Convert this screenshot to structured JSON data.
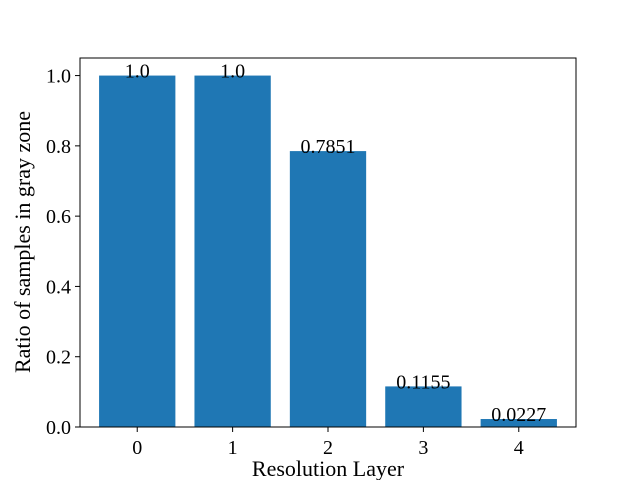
{
  "chart_data": {
    "type": "bar",
    "categories": [
      "0",
      "1",
      "2",
      "3",
      "4"
    ],
    "values": [
      1.0,
      1.0,
      0.7851,
      0.1155,
      0.0227
    ],
    "data_labels": [
      "1.0",
      "1.0",
      "0.7851",
      "0.1155",
      "0.0227"
    ],
    "xlabel": "Resolution Layer",
    "ylabel": "Ratio of samples in gray zone",
    "ylim": [
      0,
      1.05
    ],
    "yticks": [
      0.0,
      0.2,
      0.4,
      0.6,
      0.8,
      1.0
    ],
    "ytick_labels": [
      "0.0",
      "0.2",
      "0.4",
      "0.6",
      "0.8",
      "1.0"
    ],
    "bar_color": "#1f77b4",
    "grid": false,
    "legend": "none"
  }
}
